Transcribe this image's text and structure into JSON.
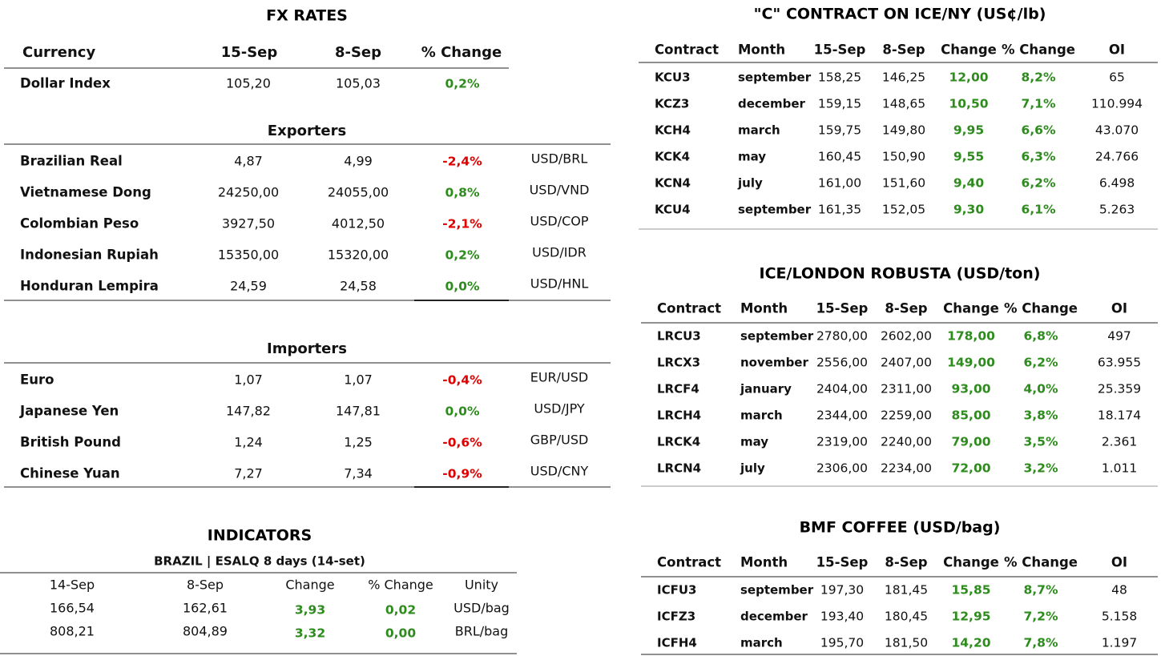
{
  "fx": {
    "title": "FX RATES",
    "header": [
      "Currency",
      "15-Sep",
      "8-Sep",
      "% Change"
    ],
    "dollar": [
      "Dollar Index",
      "105,20",
      "105,03",
      "0,2%"
    ],
    "exporters": {
      "title": "Exporters",
      "rows": [
        [
          "Brazilian Real",
          "4,87",
          "4,99",
          "-2,4%",
          "USD/BRL"
        ],
        [
          "Vietnamese Dong",
          "24250,00",
          "24055,00",
          "0,8%",
          "USD/VND"
        ],
        [
          "Colombian Peso",
          "3927,50",
          "4012,50",
          "-2,1%",
          "USD/COP"
        ],
        [
          "Indonesian Rupiah",
          "15350,00",
          "15320,00",
          "0,2%",
          "USD/IDR"
        ],
        [
          "Honduran Lempira",
          "24,59",
          "24,58",
          "0,0%",
          "USD/HNL"
        ]
      ]
    },
    "importers": {
      "title": "Importers",
      "rows": [
        [
          "Euro",
          "1,07",
          "1,07",
          "-0,4%",
          "EUR/USD"
        ],
        [
          "Japanese Yen",
          "147,82",
          "147,81",
          "0,0%",
          "USD/JPY"
        ],
        [
          "British Pound",
          "1,24",
          "1,25",
          "-0,6%",
          "GBP/USD"
        ],
        [
          "Chinese Yuan",
          "7,27",
          "7,34",
          "-0,9%",
          "USD/CNY"
        ]
      ]
    }
  },
  "indicators": {
    "title": "INDICATORS",
    "subtitle": "BRAZIL | ESALQ 8 days (14-set)",
    "header": [
      "14-Sep",
      "8-Sep",
      "Change",
      "% Change",
      "Unity"
    ],
    "rows": [
      [
        "166,54",
        "162,61",
        "3,93",
        "0,02",
        "USD/bag"
      ],
      [
        "808,21",
        "804,89",
        "3,32",
        "0,00",
        "BRL/bag"
      ]
    ]
  },
  "ice_ny": {
    "title": "\"C\" CONTRACT ON ICE/NY (US¢/lb)",
    "header": [
      "Contract",
      "Month",
      "15-Sep",
      "8-Sep",
      "Change",
      "% Change",
      "OI"
    ],
    "rows": [
      [
        "KCU3",
        "september",
        "158,25",
        "146,25",
        "12,00",
        "8,2%",
        "65"
      ],
      [
        "KCZ3",
        "december",
        "159,15",
        "148,65",
        "10,50",
        "7,1%",
        "110.994"
      ],
      [
        "KCH4",
        "march",
        "159,75",
        "149,80",
        "9,95",
        "6,6%",
        "43.070"
      ],
      [
        "KCK4",
        "may",
        "160,45",
        "150,90",
        "9,55",
        "6,3%",
        "24.766"
      ],
      [
        "KCN4",
        "july",
        "161,00",
        "151,60",
        "9,40",
        "6,2%",
        "6.498"
      ],
      [
        "KCU4",
        "september",
        "161,35",
        "152,05",
        "9,30",
        "6,1%",
        "5.263"
      ]
    ]
  },
  "robusta": {
    "title": "ICE/LONDON ROBUSTA (USD/ton)",
    "header": [
      "Contract",
      "Month",
      "15-Sep",
      "8-Sep",
      "Change",
      "% Change",
      "OI"
    ],
    "rows": [
      [
        "LRCU3",
        "september",
        "2780,00",
        "2602,00",
        "178,00",
        "6,8%",
        "497"
      ],
      [
        "LRCX3",
        "november",
        "2556,00",
        "2407,00",
        "149,00",
        "6,2%",
        "63.955"
      ],
      [
        "LRCF4",
        "january",
        "2404,00",
        "2311,00",
        "93,00",
        "4,0%",
        "25.359"
      ],
      [
        "LRCH4",
        "march",
        "2344,00",
        "2259,00",
        "85,00",
        "3,8%",
        "18.174"
      ],
      [
        "LRCK4",
        "may",
        "2319,00",
        "2240,00",
        "79,00",
        "3,5%",
        "2.361"
      ],
      [
        "LRCN4",
        "july",
        "2306,00",
        "2234,00",
        "72,00",
        "3,2%",
        "1.011"
      ]
    ]
  },
  "bmf": {
    "title": "BMF COFFEE (USD/bag)",
    "header": [
      "Contract",
      "Month",
      "15-Sep",
      "8-Sep",
      "Change",
      "% Change",
      "OI"
    ],
    "rows": [
      [
        "ICFU3",
        "september",
        "197,30",
        "181,45",
        "15,85",
        "8,7%",
        "48"
      ],
      [
        "ICFZ3",
        "december",
        "193,40",
        "180,45",
        "12,95",
        "7,2%",
        "5.158"
      ],
      [
        "ICFH4",
        "march",
        "195,70",
        "181,50",
        "14,20",
        "7,8%",
        "1.197"
      ]
    ]
  }
}
